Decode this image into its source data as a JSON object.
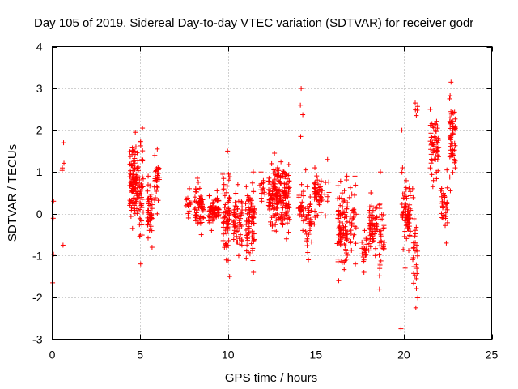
{
  "chart_data": {
    "type": "scatter",
    "title": "Day 105 of 2019, Sidereal Day-to-day VTEC variation (SDTVAR) for receiver godr",
    "xlabel": "GPS time / hours",
    "ylabel": "SDTVAR / TECUs",
    "xlim": [
      0,
      25
    ],
    "ylim": [
      -3,
      4
    ],
    "xticks": [
      0,
      5,
      10,
      15,
      20,
      25
    ],
    "yticks": [
      -3,
      -2,
      -1,
      0,
      1,
      2,
      3,
      4
    ],
    "xtick_labels": [
      "0",
      "5",
      "10",
      "15",
      "20",
      "25"
    ],
    "ytick_labels": [
      "-3",
      "-2",
      "-1",
      "0",
      "1",
      "2",
      "3",
      "4"
    ],
    "grid": true,
    "marker": "+",
    "color": "#ff0000",
    "series": [
      {
        "name": "SDTVAR",
        "clusters": [
          {
            "x": [
              0.0,
              0.1
            ],
            "y": [
              -1.65,
              0.3
            ],
            "n": 4
          },
          {
            "x": [
              0.55,
              0.7
            ],
            "y": [
              -0.75,
              1.7
            ],
            "n": 5
          },
          {
            "x": [
              4.4,
              4.9
            ],
            "y": [
              -0.35,
              1.95
            ],
            "n": 120
          },
          {
            "x": [
              4.95,
              5.2
            ],
            "y": [
              -1.2,
              2.05
            ],
            "n": 40
          },
          {
            "x": [
              5.4,
              5.7
            ],
            "y": [
              -0.8,
              0.9
            ],
            "n": 45
          },
          {
            "x": [
              5.8,
              6.1
            ],
            "y": [
              0.0,
              1.55
            ],
            "n": 30
          },
          {
            "x": [
              7.6,
              7.9
            ],
            "y": [
              -0.1,
              0.6
            ],
            "n": 15
          },
          {
            "x": [
              8.1,
              8.6
            ],
            "y": [
              -0.5,
              0.85
            ],
            "n": 60
          },
          {
            "x": [
              8.9,
              9.5
            ],
            "y": [
              -0.4,
              0.55
            ],
            "n": 70
          },
          {
            "x": [
              9.7,
              10.1
            ],
            "y": [
              -1.5,
              1.5
            ],
            "n": 70
          },
          {
            "x": [
              10.3,
              10.8
            ],
            "y": [
              -1.0,
              0.7
            ],
            "n": 60
          },
          {
            "x": [
              11.0,
              11.5
            ],
            "y": [
              -1.4,
              1.0
            ],
            "n": 80
          },
          {
            "x": [
              11.8,
              12.1
            ],
            "y": [
              0.3,
              1.0
            ],
            "n": 15
          },
          {
            "x": [
              12.3,
              13.5
            ],
            "y": [
              -0.6,
              1.45
            ],
            "n": 200
          },
          {
            "x": [
              14.0,
              14.3
            ],
            "y": [
              -0.4,
              0.7
            ],
            "n": 25
          },
          {
            "x": [
              14.1,
              14.3
            ],
            "y": [
              1.85,
              3.0
            ],
            "n": 4
          },
          {
            "x": [
              14.4,
              14.8
            ],
            "y": [
              -1.1,
              1.05
            ],
            "n": 40
          },
          {
            "x": [
              14.9,
              15.4
            ],
            "y": [
              -0.25,
              1.1
            ],
            "n": 50
          },
          {
            "x": [
              15.5,
              15.8
            ],
            "y": [
              -0.05,
              1.3
            ],
            "n": 8
          },
          {
            "x": [
              16.2,
              16.8
            ],
            "y": [
              -1.6,
              0.9
            ],
            "n": 100
          },
          {
            "x": [
              16.9,
              17.3
            ],
            "y": [
              -1.2,
              0.9
            ],
            "n": 30
          },
          {
            "x": [
              17.6,
              17.9
            ],
            "y": [
              -1.4,
              -0.4
            ],
            "n": 20
          },
          {
            "x": [
              18.0,
              18.5
            ],
            "y": [
              -1.0,
              0.5
            ],
            "n": 60
          },
          {
            "x": [
              18.6,
              18.9
            ],
            "y": [
              -1.8,
              1.0
            ],
            "n": 35
          },
          {
            "x": [
              19.8,
              20.0
            ],
            "y": [
              -2.75,
              2.0
            ],
            "n": 3
          },
          {
            "x": [
              19.9,
              20.4
            ],
            "y": [
              -1.3,
              1.1
            ],
            "n": 70
          },
          {
            "x": [
              20.5,
              20.8
            ],
            "y": [
              -2.25,
              0.6
            ],
            "n": 30
          },
          {
            "x": [
              20.5,
              20.8
            ],
            "y": [
              2.35,
              2.65
            ],
            "n": 5
          },
          {
            "x": [
              21.5,
              22.0
            ],
            "y": [
              0.65,
              2.5
            ],
            "n": 60
          },
          {
            "x": [
              22.1,
              22.5
            ],
            "y": [
              -0.7,
              1.05
            ],
            "n": 35
          },
          {
            "x": [
              22.6,
              22.95
            ],
            "y": [
              0.55,
              3.15
            ],
            "n": 60
          }
        ]
      }
    ]
  }
}
